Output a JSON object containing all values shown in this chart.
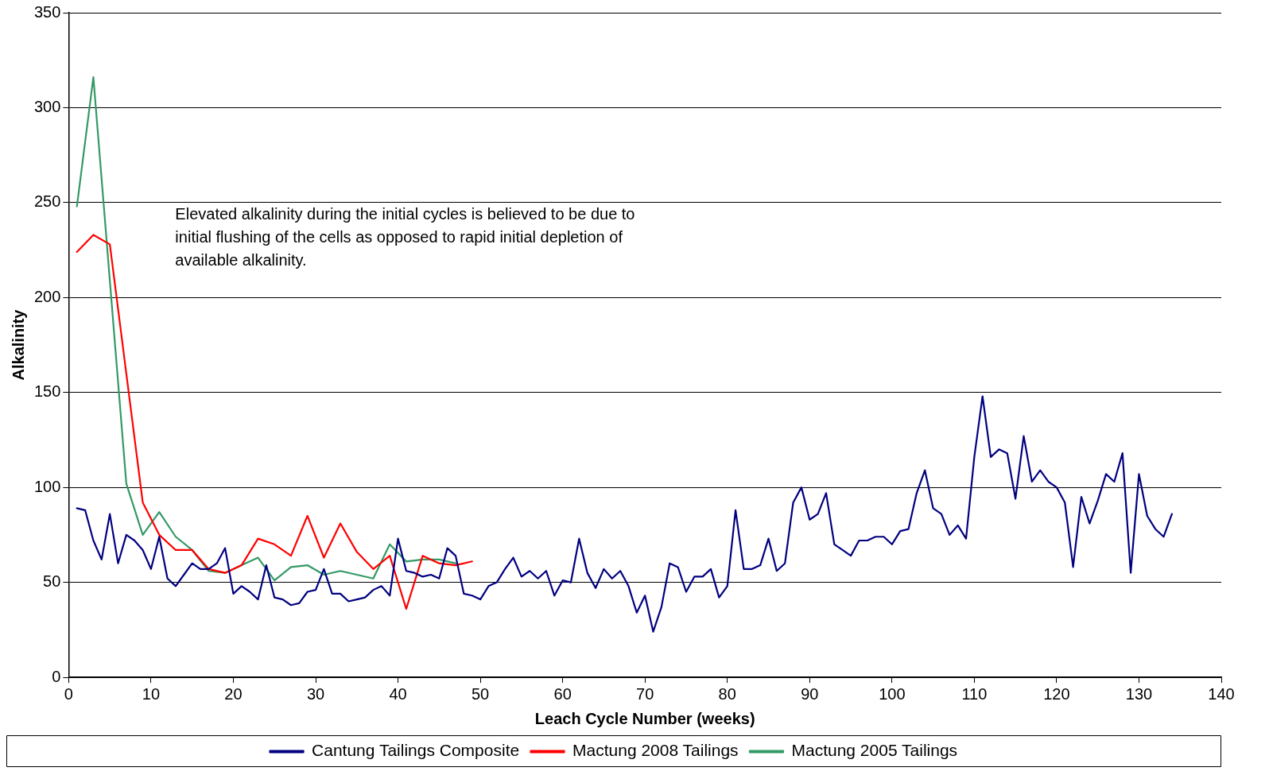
{
  "chart_data": {
    "type": "line",
    "xlabel": "Leach Cycle Number (weeks)",
    "ylabel": "Alkalinity",
    "xlim": [
      0,
      140
    ],
    "xticks": [
      0,
      10,
      20,
      30,
      40,
      50,
      60,
      70,
      80,
      90,
      100,
      110,
      120,
      130,
      140
    ],
    "ylim": [
      0,
      350
    ],
    "yticks": [
      0,
      50,
      100,
      150,
      200,
      250,
      300,
      350
    ],
    "grid": "y",
    "legend": "bottom",
    "marker": "none",
    "line_style": "solid",
    "annotations": [
      "Elevated alkalinity during the initial cycles is believed to be due to initial flushing of the cells as opposed to rapid initial depletion of available alkalinity."
    ],
    "series": [
      {
        "name": "Cantung Tailings Composite",
        "color": "#000080",
        "x": [
          1,
          2,
          3,
          4,
          5,
          6,
          7,
          8,
          9,
          10,
          11,
          12,
          13,
          14,
          15,
          16,
          17,
          18,
          19,
          20,
          21,
          22,
          23,
          24,
          25,
          26,
          27,
          28,
          29,
          30,
          31,
          32,
          33,
          34,
          35,
          36,
          37,
          38,
          39,
          40,
          41,
          42,
          43,
          44,
          45,
          46,
          47,
          48,
          49,
          50,
          51,
          52,
          53,
          54,
          55,
          56,
          57,
          58,
          59,
          60,
          61,
          62,
          63,
          64,
          65,
          66,
          67,
          68,
          69,
          70,
          71,
          72,
          73,
          74,
          75,
          76,
          77,
          78,
          79,
          80,
          81,
          82,
          83,
          84,
          85,
          86,
          87,
          88,
          89,
          90,
          91,
          92,
          93,
          94,
          95,
          96,
          97,
          98,
          99,
          100,
          101,
          102,
          103,
          104,
          105,
          106,
          107,
          108,
          109,
          110,
          111,
          112,
          113,
          114,
          115,
          116,
          117,
          118,
          119,
          120,
          121,
          122,
          123,
          124,
          125,
          126,
          127,
          128,
          129,
          130,
          131,
          132,
          133,
          134
        ],
        "values": [
          89,
          88,
          72,
          62,
          86,
          60,
          75,
          72,
          67,
          57,
          74,
          52,
          48,
          54,
          60,
          57,
          57,
          60,
          68,
          44,
          48,
          45,
          41,
          59,
          42,
          41,
          38,
          39,
          45,
          46,
          57,
          44,
          44,
          40,
          41,
          42,
          46,
          48,
          43,
          73,
          56,
          55,
          53,
          54,
          52,
          68,
          64,
          44,
          43,
          41,
          48,
          50,
          57,
          63,
          53,
          56,
          52,
          56,
          43,
          51,
          50,
          73,
          55,
          47,
          57,
          52,
          56,
          48,
          34,
          43,
          24,
          37,
          60,
          58,
          45,
          53,
          53,
          57,
          42,
          48,
          88,
          57,
          57,
          59,
          73,
          56,
          60,
          92,
          100,
          83,
          86,
          97,
          70,
          67,
          64,
          72,
          72,
          74,
          74,
          70,
          77,
          78,
          97,
          109,
          89,
          86,
          75,
          80,
          73,
          116,
          148,
          116,
          120,
          118,
          94,
          127,
          103,
          109,
          103,
          100,
          92,
          58,
          95,
          81,
          93,
          107,
          103,
          118,
          55,
          107,
          85,
          78,
          74,
          86
        ]
      },
      {
        "name": "Mactung 2008 Tailings",
        "color": "#ff0000",
        "x": [
          1,
          3,
          5,
          9,
          11,
          13,
          15,
          17,
          19,
          21,
          23,
          25,
          27,
          29,
          31,
          33,
          35,
          37,
          39,
          41,
          43,
          45,
          47,
          49
        ],
        "values": [
          224,
          233,
          228,
          92,
          75,
          67,
          67,
          57,
          55,
          59,
          73,
          70,
          64,
          85,
          63,
          81,
          66,
          57,
          64,
          36,
          64,
          60,
          59,
          61
        ]
      },
      {
        "name": "Mactung 2005 Tailings",
        "color": "#339966",
        "x": [
          1,
          3,
          5,
          7,
          9,
          11,
          13,
          15,
          17,
          19,
          21,
          23,
          25,
          27,
          29,
          31,
          33,
          35,
          37,
          39,
          41,
          43,
          45,
          47
        ],
        "values": [
          248,
          316,
          209,
          102,
          75,
          87,
          74,
          67,
          56,
          55,
          59,
          63,
          51,
          58,
          59,
          54,
          56,
          54,
          52,
          70,
          61,
          62,
          62,
          60
        ]
      }
    ]
  }
}
